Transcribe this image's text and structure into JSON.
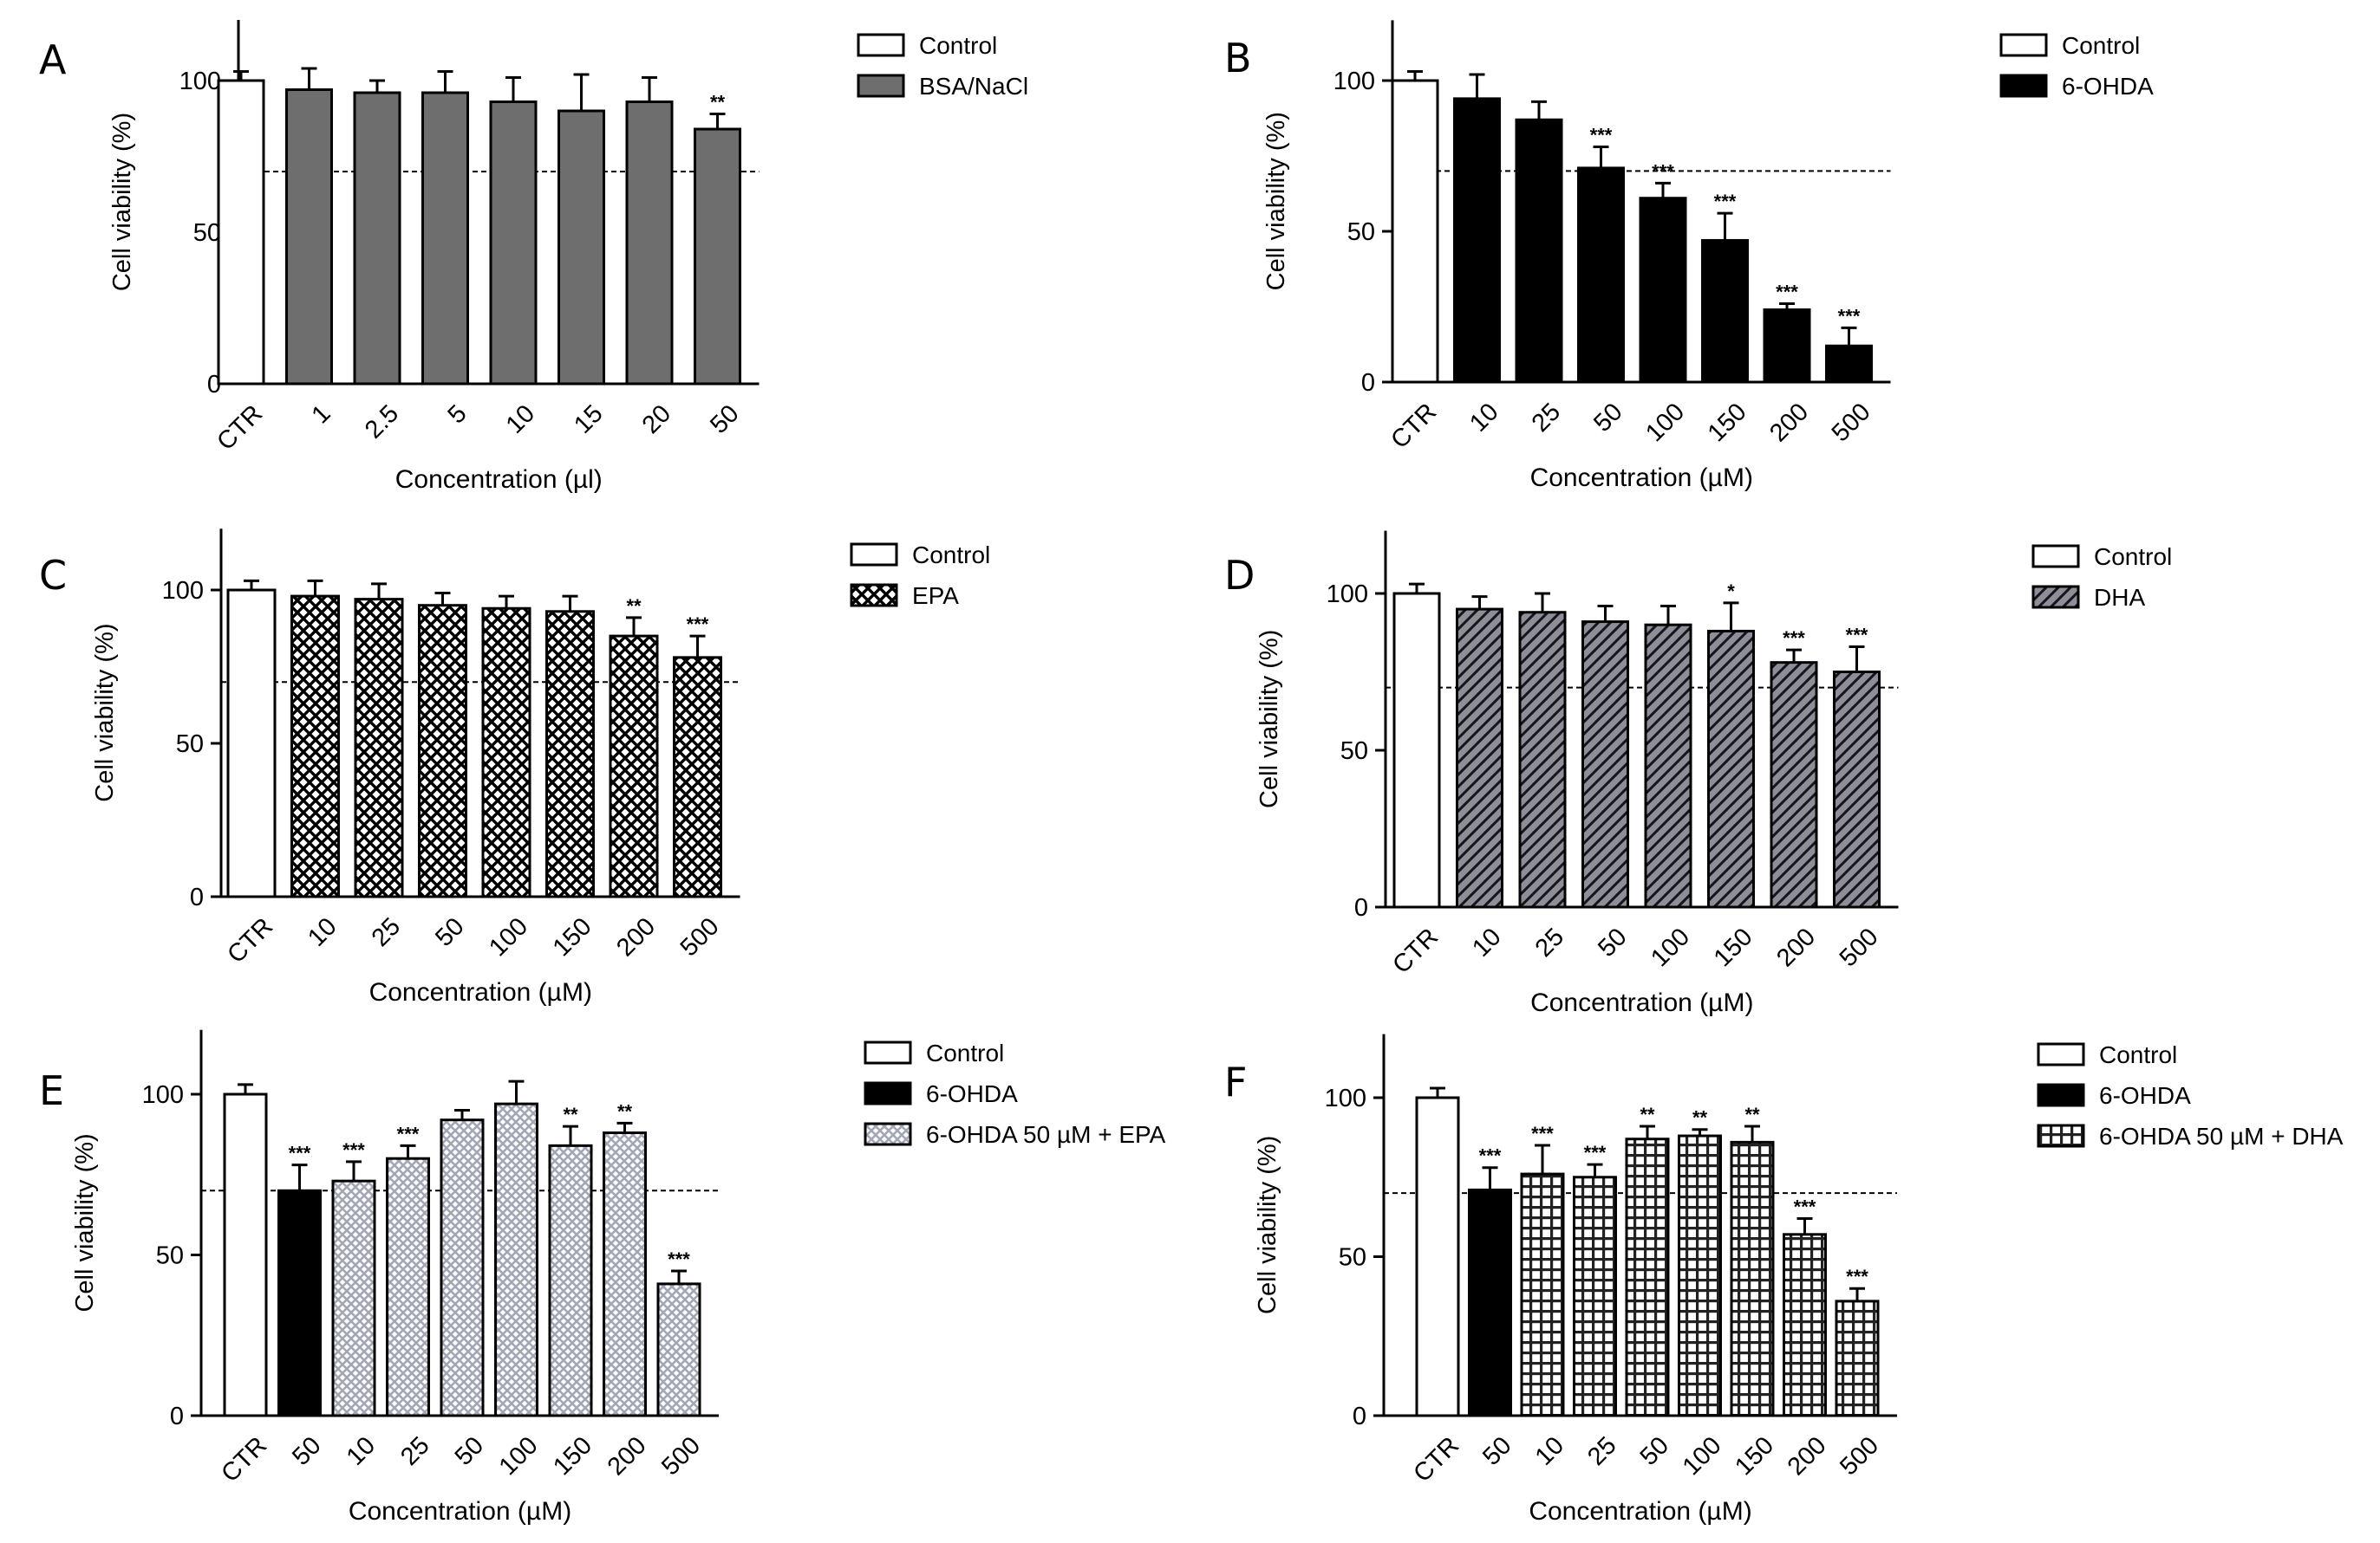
{
  "chart_data": [
    {
      "panel": "A",
      "type": "bar",
      "categories": [
        "CTR",
        "1",
        "2.5",
        "5",
        "10",
        "15",
        "20",
        "50"
      ],
      "values": [
        100,
        97,
        96,
        96,
        93,
        90,
        93,
        84
      ],
      "errors": [
        3,
        7,
        4,
        7,
        8,
        12,
        8,
        5
      ],
      "groups": [
        "Control",
        "BSA/NaCl",
        "BSA/NaCl",
        "BSA/NaCl",
        "BSA/NaCl",
        "BSA/NaCl",
        "BSA/NaCl",
        "BSA/NaCl"
      ],
      "significance": [
        "",
        "",
        "",
        "",
        "",
        "",
        "",
        "**"
      ],
      "legend": [
        {
          "label": "Control",
          "style": "white"
        },
        {
          "label": "BSA/NaCl",
          "style": "gray"
        }
      ],
      "xlabel": "Concentration (µl)",
      "ylabel": "Cell viability (%)",
      "yticks": [
        "0",
        "50",
        "100"
      ],
      "ylim": [
        0,
        120
      ],
      "reference_line": 70
    },
    {
      "panel": "B",
      "type": "bar",
      "categories": [
        "CTR",
        "10",
        "25",
        "50",
        "100",
        "150",
        "200",
        "500"
      ],
      "values": [
        100,
        94,
        87,
        71,
        61,
        47,
        24,
        12
      ],
      "errors": [
        3,
        8,
        6,
        7,
        5,
        9,
        2,
        6
      ],
      "groups": [
        "Control",
        "6-OHDA",
        "6-OHDA",
        "6-OHDA",
        "6-OHDA",
        "6-OHDA",
        "6-OHDA",
        "6-OHDA"
      ],
      "significance": [
        "",
        "",
        "",
        "***",
        "***",
        "***",
        "***",
        "***"
      ],
      "legend": [
        {
          "label": "Control",
          "style": "white"
        },
        {
          "label": "6-OHDA",
          "style": "black"
        }
      ],
      "xlabel": "Concentration (µM)",
      "ylabel": "Cell viability (%)",
      "yticks": [
        "0",
        "50",
        "100"
      ],
      "ylim": [
        0,
        120
      ],
      "reference_line": 70
    },
    {
      "panel": "C",
      "type": "bar",
      "categories": [
        "CTR",
        "10",
        "25",
        "50",
        "100",
        "150",
        "200",
        "500"
      ],
      "values": [
        100,
        98,
        97,
        95,
        94,
        93,
        85,
        78
      ],
      "errors": [
        3,
        5,
        5,
        4,
        4,
        5,
        6,
        7
      ],
      "groups": [
        "Control",
        "EPA",
        "EPA",
        "EPA",
        "EPA",
        "EPA",
        "EPA",
        "EPA"
      ],
      "significance": [
        "",
        "",
        "",
        "",
        "",
        "",
        "**",
        "***"
      ],
      "legend": [
        {
          "label": "Control",
          "style": "white"
        },
        {
          "label": "EPA",
          "style": "cross"
        }
      ],
      "xlabel": "Concentration (µM)",
      "ylabel": "Cell viability (%)",
      "yticks": [
        "0",
        "50",
        "100"
      ],
      "ylim": [
        0,
        120
      ],
      "reference_line": 70
    },
    {
      "panel": "D",
      "type": "bar",
      "categories": [
        "CTR",
        "10",
        "25",
        "50",
        "100",
        "150",
        "200",
        "500"
      ],
      "values": [
        100,
        95,
        94,
        91,
        90,
        88,
        78,
        75
      ],
      "errors": [
        3,
        4,
        6,
        5,
        6,
        9,
        4,
        8
      ],
      "groups": [
        "Control",
        "DHA",
        "DHA",
        "DHA",
        "DHA",
        "DHA",
        "DHA",
        "DHA"
      ],
      "significance": [
        "",
        "",
        "",
        "",
        "",
        "*",
        "***",
        "***"
      ],
      "legend": [
        {
          "label": "Control",
          "style": "white"
        },
        {
          "label": "DHA",
          "style": "diagonal"
        }
      ],
      "xlabel": "Concentration (µM)",
      "ylabel": "Cell viability (%)",
      "yticks": [
        "0",
        "50",
        "100"
      ],
      "ylim": [
        0,
        120
      ],
      "reference_line": 70
    },
    {
      "panel": "E",
      "type": "bar",
      "categories": [
        "CTR",
        "50",
        "10",
        "25",
        "50",
        "100",
        "150",
        "200",
        "500"
      ],
      "values": [
        100,
        70,
        73,
        80,
        92,
        97,
        84,
        88,
        41
      ],
      "errors": [
        3,
        8,
        6,
        4,
        3,
        7,
        6,
        3,
        4
      ],
      "groups": [
        "Control",
        "6-OHDA",
        "6-OHDA 50 µM + EPA",
        "6-OHDA 50 µM + EPA",
        "6-OHDA 50 µM + EPA",
        "6-OHDA 50 µM + EPA",
        "6-OHDA 50 µM + EPA",
        "6-OHDA 50 µM + EPA",
        "6-OHDA 50 µM + EPA"
      ],
      "significance": [
        "",
        "***",
        "***",
        "***",
        "",
        "",
        "**",
        "**",
        "***"
      ],
      "legend": [
        {
          "label": "Control",
          "style": "white"
        },
        {
          "label": "6-OHDA",
          "style": "black"
        },
        {
          "label": "6-OHDA 50 µM + EPA",
          "style": "dots"
        }
      ],
      "xlabel": "Concentration (µM)",
      "ylabel": "Cell viability (%)",
      "yticks": [
        "0",
        "50",
        "100"
      ],
      "ylim": [
        0,
        120
      ],
      "reference_line": 70
    },
    {
      "panel": "F",
      "type": "bar",
      "categories": [
        "CTR",
        "50",
        "10",
        "25",
        "50",
        "100",
        "150",
        "200",
        "500"
      ],
      "values": [
        100,
        71,
        76,
        75,
        87,
        88,
        86,
        57,
        36
      ],
      "errors": [
        3,
        7,
        9,
        4,
        4,
        2,
        5,
        5,
        4
      ],
      "groups": [
        "Control",
        "6-OHDA",
        "6-OHDA 50 µM + DHA",
        "6-OHDA 50 µM + DHA",
        "6-OHDA 50 µM + DHA",
        "6-OHDA 50 µM + DHA",
        "6-OHDA 50 µM + DHA",
        "6-OHDA 50 µM + DHA",
        "6-OHDA 50 µM + DHA"
      ],
      "significance": [
        "",
        "***",
        "***",
        "***",
        "**",
        "**",
        "**",
        "***",
        "***"
      ],
      "legend": [
        {
          "label": "Control",
          "style": "white"
        },
        {
          "label": "6-OHDA",
          "style": "black"
        },
        {
          "label": "6-OHDA 50 µM + DHA",
          "style": "grid"
        }
      ],
      "xlabel": "Concentration (µM)",
      "ylabel": "Cell viability (%)",
      "yticks": [
        "0",
        "50",
        "100"
      ],
      "ylim": [
        0,
        120
      ],
      "reference_line": 70
    }
  ]
}
